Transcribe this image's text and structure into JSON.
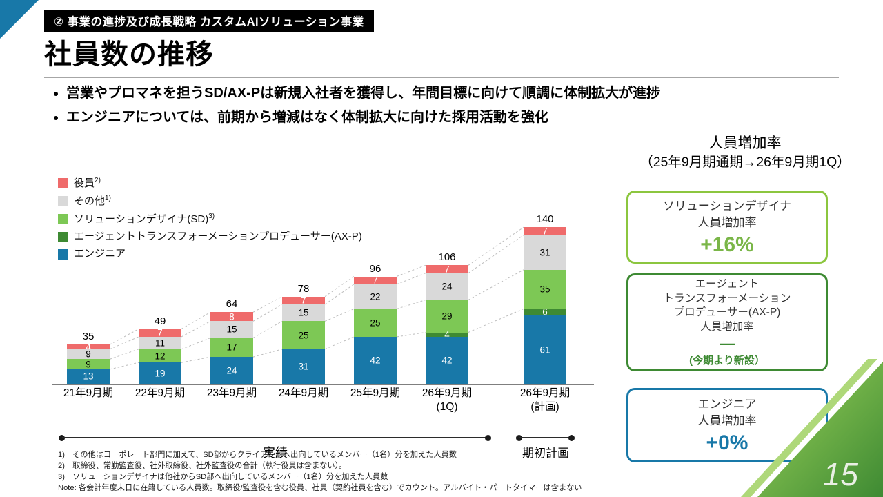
{
  "slide": {
    "band": "② 事業の進捗及び成長戦略 カスタムAIソリューション事業",
    "title": "社員数の推移",
    "bullets": [
      "営業やプロマネを担うSD/AX-Pは新規入社者を獲得し、年間目標に向けて順調に体制拡大が進捗",
      "エンジニアについては、前期から増減はなく体制拡大に向けた採用活動を強化"
    ],
    "page_number": "15"
  },
  "rate_panel": {
    "title_line1": "人員増加率",
    "title_line2": "（25年9月期通期→26年9月期1Q）",
    "boxes": [
      {
        "lines": [
          "ソリューションデザイナ",
          "人員増加率"
        ],
        "value": "+16%",
        "border_color": "#8cc63f",
        "value_color": "#7ab648"
      },
      {
        "lines": [
          "エージェント",
          "トランスフォーメーション",
          "プロデューサー(AX-P)",
          "人員増加率"
        ],
        "value": "—",
        "note": "(今期より新設）",
        "border_color": "#3e8a33",
        "value_color": "#3e8a33"
      },
      {
        "lines": [
          "エンジニア",
          "人員増加率"
        ],
        "value": "+0%",
        "border_color": "#1878a8",
        "value_color": "#1878a8"
      }
    ]
  },
  "chart_data": {
    "type": "bar",
    "stacked": true,
    "title": "社員数の推移",
    "categories": [
      "21年9月期",
      "22年9月期",
      "23年9月期",
      "24年9月期",
      "25年9月期",
      "26年9月期\n(1Q)",
      "26年9月期\n(計画)"
    ],
    "series": [
      {
        "name": "エンジニア",
        "color": "#1878a8",
        "label_color": "#ffffff",
        "values": [
          13,
          19,
          24,
          31,
          42,
          42,
          61
        ]
      },
      {
        "name": "エージェントトランスフォーメーションプロデューサー(AX-P)",
        "color": "#3e8a33",
        "label_color": "#ffffff",
        "values": [
          0,
          0,
          0,
          0,
          0,
          4,
          6
        ]
      },
      {
        "name": "ソリューションデザイナ(SD)",
        "color": "#7dc855",
        "label_color": "#000000",
        "values": [
          9,
          12,
          17,
          25,
          25,
          29,
          35
        ]
      },
      {
        "name": "その他",
        "color": "#d9d9d9",
        "label_color": "#000000",
        "values": [
          9,
          11,
          15,
          15,
          22,
          24,
          31
        ]
      },
      {
        "name": "役員",
        "color": "#ef6b6b",
        "label_color": "#ffffff",
        "values": [
          4,
          7,
          8,
          7,
          7,
          7,
          7
        ]
      }
    ],
    "totals": [
      35,
      49,
      64,
      78,
      96,
      106,
      140
    ],
    "legend": [
      {
        "label": "役員",
        "sup": "2)",
        "color": "#ef6b6b"
      },
      {
        "label": "その他",
        "sup": "1)",
        "color": "#d9d9d9"
      },
      {
        "label": "ソリューションデザイナ(SD)",
        "sup": "3)",
        "color": "#7dc855"
      },
      {
        "label": "エージェントトランスフォーメーションプロデューサー(AX-P)",
        "sup": "",
        "color": "#3e8a33"
      },
      {
        "label": "エンジニア",
        "sup": "",
        "color": "#1878a8"
      }
    ],
    "ylim": [
      0,
      150
    ],
    "grid": false,
    "legend_position": "upper-left"
  },
  "timeline": {
    "actual_label": "実績",
    "plan_label": "期初計画"
  },
  "footnotes": [
    "1)　その他はコーポレート部門に加えて、SD部からクライアントへ出向しているメンバー（1名）分を加えた人員数",
    "2)　取締役、常勤監査役、社外取締役、社外監査役の合計（執行役員は含まない）。",
    "3)　ソリューションデザイナは他社からSD部へ出向しているメンバー（1名）分を加えた人員数",
    "Note: 各会計年度末日に在籍している人員数。取締役/監査役を含む役員、社員（契約社員を含む）でカウント。アルバイト・パートタイマーは含まない"
  ]
}
